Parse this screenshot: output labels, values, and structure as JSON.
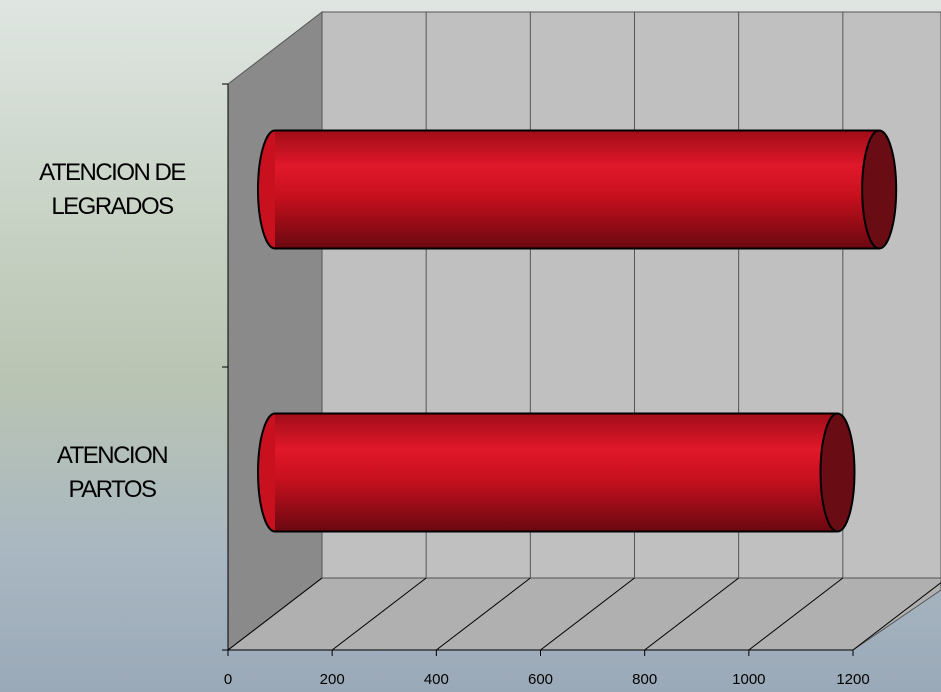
{
  "chart_data": {
    "type": "bar",
    "orientation": "horizontal",
    "categories": [
      "ATENCION DE LEGRADOS",
      "ATENCION PARTOS"
    ],
    "values": [
      1160,
      1080
    ],
    "color": "#c8101e",
    "xlim": [
      0,
      1200
    ],
    "xticks": [
      0,
      200,
      400,
      600,
      800,
      1000,
      1200
    ],
    "grid": true
  }
}
